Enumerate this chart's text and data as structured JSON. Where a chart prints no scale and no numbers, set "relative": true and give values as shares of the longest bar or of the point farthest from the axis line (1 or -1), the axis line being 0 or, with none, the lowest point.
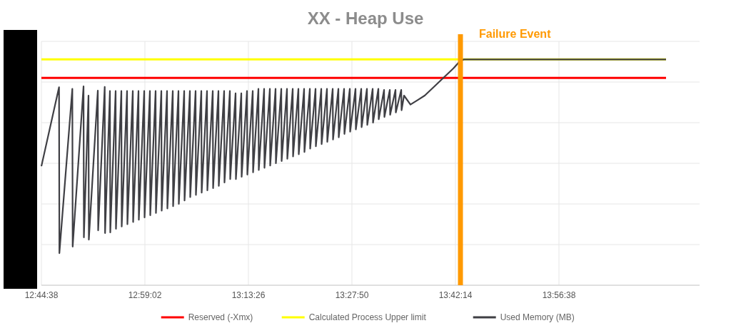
{
  "chart_data": {
    "type": "line",
    "title": "XX - Heap Use",
    "relative": true,
    "grid": true,
    "legend": "bottom",
    "tick_labels": "x",
    "marker": "none",
    "line_style": "solid",
    "xlim": [
      12.7439,
      14.27
    ],
    "xticks": [
      {
        "value": 12.7439,
        "label": "12:44:38"
      },
      {
        "value": 12.9839,
        "label": "12:59:02"
      },
      {
        "value": 13.2239,
        "label": "13:13:26"
      },
      {
        "value": 13.4639,
        "label": "13:27:50"
      },
      {
        "value": 13.7039,
        "label": "13:42:14"
      },
      {
        "value": 13.9439,
        "label": "13:56:38"
      }
    ],
    "ref_lines": [
      {
        "axis": "x",
        "value": 13.7155,
        "label": "Failure Event",
        "color": "#ff9900"
      }
    ],
    "series": [
      {
        "name": "Reserved (-Xmx)",
        "color": "#ff0000",
        "x": [
          12.7439,
          14.1922
        ],
        "values": [
          0.918,
          0.918
        ]
      },
      {
        "name": "Calculated Process Upper limit",
        "color": "#ffff00",
        "x": [
          12.7439,
          14.1922
        ],
        "values": [
          1.0,
          1.0
        ]
      },
      {
        "name": "Used Memory (MB)",
        "color": "#3f3f44",
        "x": [
          12.7439,
          12.7848,
          12.7856,
          12.8156,
          12.8164,
          12.8416,
          12.8424,
          12.8531,
          12.8539,
          12.8747,
          12.8755,
          12.8907,
          12.8915,
          12.9028,
          12.9036,
          12.916,
          12.9168,
          12.9293,
          12.9301,
          12.9425,
          12.9433,
          12.9558,
          12.9566,
          12.969,
          12.9698,
          12.9823,
          12.9831,
          12.9955,
          12.9963,
          13.0087,
          13.0095,
          13.022,
          13.0228,
          13.0352,
          13.036,
          13.0485,
          13.0493,
          13.0617,
          13.0625,
          13.075,
          13.0758,
          13.0882,
          13.089,
          13.1014,
          13.1022,
          13.1147,
          13.1155,
          13.1279,
          13.1287,
          13.1412,
          13.142,
          13.1544,
          13.1552,
          13.1676,
          13.1684,
          13.1809,
          13.1817,
          13.1941,
          13.1949,
          13.2074,
          13.2082,
          13.2206,
          13.2214,
          13.2339,
          13.2347,
          13.2471,
          13.2479,
          13.2603,
          13.2611,
          13.2736,
          13.2744,
          13.2868,
          13.2876,
          13.3001,
          13.3009,
          13.3133,
          13.3141,
          13.3266,
          13.3274,
          13.3398,
          13.3406,
          13.353,
          13.3538,
          13.3663,
          13.3671,
          13.3795,
          13.3803,
          13.3928,
          13.3936,
          13.406,
          13.4068,
          13.4193,
          13.4201,
          13.4325,
          13.4333,
          13.4457,
          13.4465,
          13.459,
          13.4598,
          13.4722,
          13.473,
          13.4855,
          13.4863,
          13.4987,
          13.4995,
          13.512,
          13.5128,
          13.5252,
          13.526,
          13.5384,
          13.5392,
          13.5517,
          13.5525,
          13.5649,
          13.5657,
          13.5782,
          13.579,
          13.5847,
          13.5996,
          13.6162,
          13.6327,
          13.6493,
          13.6658,
          13.6824,
          13.6989,
          13.7155,
          13.7238,
          13.8066,
          14.1922
        ],
        "values": [
          0.527,
          0.877,
          0.142,
          0.87,
          0.171,
          0.881,
          0.212,
          0.84,
          0.202,
          0.862,
          0.243,
          0.878,
          0.231,
          0.86,
          0.234,
          0.86,
          0.25,
          0.86,
          0.26,
          0.86,
          0.27,
          0.86,
          0.28,
          0.86,
          0.29,
          0.86,
          0.3,
          0.86,
          0.31,
          0.86,
          0.32,
          0.86,
          0.33,
          0.86,
          0.34,
          0.86,
          0.35,
          0.86,
          0.36,
          0.86,
          0.375,
          0.86,
          0.39,
          0.86,
          0.4,
          0.86,
          0.41,
          0.86,
          0.42,
          0.86,
          0.43,
          0.86,
          0.44,
          0.86,
          0.455,
          0.86,
          0.47,
          0.85,
          0.47,
          0.85,
          0.48,
          0.86,
          0.49,
          0.86,
          0.5,
          0.87,
          0.51,
          0.87,
          0.52,
          0.87,
          0.53,
          0.87,
          0.54,
          0.87,
          0.55,
          0.87,
          0.56,
          0.87,
          0.57,
          0.87,
          0.58,
          0.87,
          0.59,
          0.87,
          0.605,
          0.87,
          0.615,
          0.87,
          0.625,
          0.87,
          0.635,
          0.87,
          0.645,
          0.87,
          0.655,
          0.87,
          0.67,
          0.87,
          0.68,
          0.87,
          0.69,
          0.87,
          0.7,
          0.87,
          0.71,
          0.87,
          0.72,
          0.87,
          0.735,
          0.865,
          0.745,
          0.865,
          0.755,
          0.865,
          0.765,
          0.865,
          0.775,
          0.84,
          0.8,
          0.82,
          0.84,
          0.87,
          0.9,
          0.93,
          0.96,
          0.995,
          1.0,
          1.0,
          1.0
        ]
      }
    ]
  }
}
